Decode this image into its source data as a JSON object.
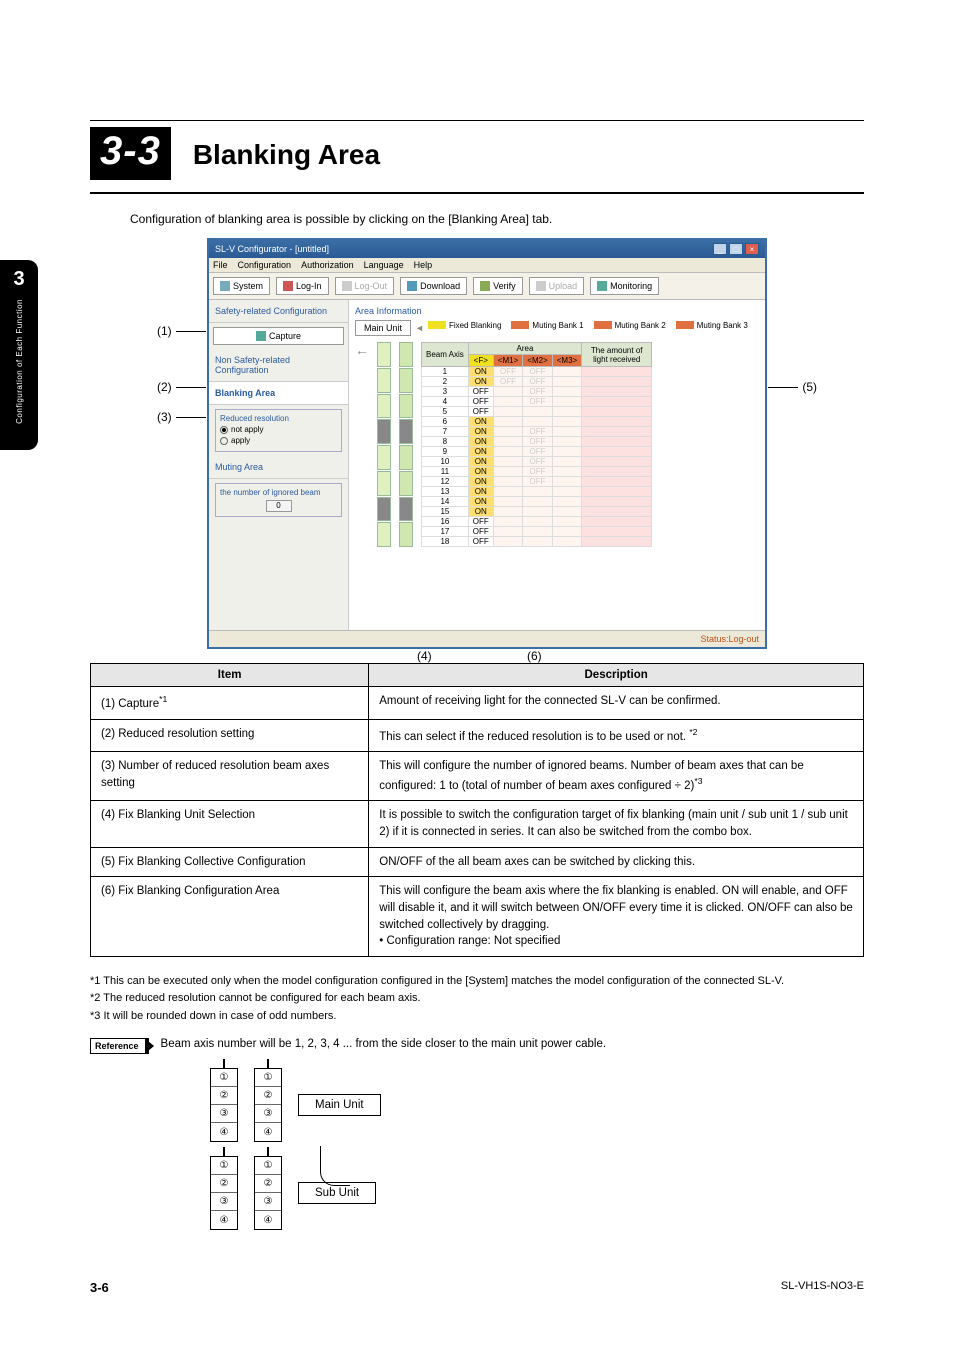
{
  "chapter": {
    "number": "3",
    "label": "Configuration of Each Function"
  },
  "section": {
    "number": "3-3",
    "title": "Blanking Area"
  },
  "intro": "Configuration of blanking area is possible by clicking on the [Blanking Area] tab.",
  "app": {
    "title": "SL-V Configurator - [untitled]",
    "menus": [
      "File",
      "Configuration",
      "Authorization",
      "Language",
      "Help"
    ],
    "toolbar": [
      "System",
      "Log-In",
      "Log-Out",
      "Download",
      "Verify",
      "Upload",
      "Monitoring"
    ],
    "left_panel": {
      "items": [
        "Safety-related Configuration",
        "Non Safety-related Configuration",
        "Blanking Area",
        "Muting Area"
      ],
      "capture_btn": "Capture",
      "reduced_header": "Reduced resolution",
      "radio_not_apply": "not apply",
      "radio_apply": "apply",
      "ignored_header": "the number of ignored beam",
      "num_value": "0"
    },
    "area": {
      "header": "Area Information",
      "main_unit": "Main Unit",
      "legend": [
        {
          "label": "Fixed Blanking",
          "color": "#f0e020"
        },
        {
          "label": "Muting Bank 1",
          "color": "#e07040"
        },
        {
          "label": "Muting Bank 2",
          "color": "#e07040"
        },
        {
          "label": "Muting Bank 3",
          "color": "#e07040"
        }
      ],
      "table_headers": [
        "Beam Axis",
        "<F>",
        "<M1>",
        "<M2>",
        "<M3>",
        "The amount of light received"
      ],
      "rows": [
        {
          "n": 1,
          "f": "ON",
          "m1": "OFF",
          "m2": "OFF"
        },
        {
          "n": 2,
          "f": "ON",
          "m1": "OFF",
          "m2": "OFF"
        },
        {
          "n": 3,
          "f": "OFF",
          "m1": "",
          "m2": "OFF"
        },
        {
          "n": 4,
          "f": "OFF",
          "m1": "",
          "m2": "OFF"
        },
        {
          "n": 5,
          "f": "OFF",
          "m1": "",
          "m2": ""
        },
        {
          "n": 6,
          "f": "ON",
          "m1": "",
          "m2": ""
        },
        {
          "n": 7,
          "f": "ON",
          "m1": "",
          "m2": "OFF"
        },
        {
          "n": 8,
          "f": "ON",
          "m1": "",
          "m2": "OFF"
        },
        {
          "n": 9,
          "f": "ON",
          "m1": "",
          "m2": "OFF"
        },
        {
          "n": 10,
          "f": "ON",
          "m1": "",
          "m2": "OFF"
        },
        {
          "n": 11,
          "f": "ON",
          "m1": "",
          "m2": "OFF"
        },
        {
          "n": 12,
          "f": "ON",
          "m1": "",
          "m2": "OFF"
        },
        {
          "n": 13,
          "f": "ON",
          "m1": "",
          "m2": ""
        },
        {
          "n": 14,
          "f": "ON",
          "m1": "",
          "m2": ""
        },
        {
          "n": 15,
          "f": "ON",
          "m1": "",
          "m2": ""
        },
        {
          "n": 16,
          "f": "OFF",
          "m1": "",
          "m2": ""
        },
        {
          "n": 17,
          "f": "OFF",
          "m1": "",
          "m2": ""
        },
        {
          "n": 18,
          "f": "OFF",
          "m1": "",
          "m2": ""
        }
      ]
    },
    "status": "Status:Log-out"
  },
  "callouts": {
    "c1": "(1)",
    "c2": "(2)",
    "c3": "(3)",
    "c4": "(4)",
    "c5": "(5)",
    "c6": "(6)"
  },
  "table": {
    "head_item": "Item",
    "head_desc": "Description",
    "rows": [
      {
        "item": "(1) Capture*1",
        "sup": "1",
        "desc": "Amount of receiving light for the connected SL-V can be confirmed."
      },
      {
        "item": "(2) Reduced resolution setting",
        "desc": "This can select if the reduced resolution is to be used or not. *2",
        "sup2": "2"
      },
      {
        "item": "(3) Number of reduced resolution beam axes setting",
        "desc": "This will configure the number of ignored beams. Number of beam axes that can be configured: 1 to (total of number of beam axes configured ÷ 2)*3",
        "sup2": "3"
      },
      {
        "item": "(4) Fix Blanking Unit Selection",
        "desc": "It is possible to switch the configuration target of fix blanking (main unit / sub unit 1 / sub unit 2) if it is connected in series. It can also be switched from the combo box."
      },
      {
        "item": "(5) Fix Blanking Collective Configuration",
        "desc": "ON/OFF of the all beam axes can be switched by clicking this."
      },
      {
        "item": "(6) Fix Blanking Configuration Area",
        "desc": "This will configure the beam axis where the fix blanking is enabled. ON will enable, and OFF will disable it, and it will switch between ON/OFF every time it is clicked. ON/OFF can also be switched collectively by dragging.\n• Configuration range: Not specified"
      }
    ]
  },
  "footnotes": {
    "f1": "*1 This can be executed only when the model configuration configured in the [System] matches the model configuration of the connected SL-V.",
    "f2": "*2 The reduced resolution cannot be configured for each beam axis.",
    "f3": "*3 It will be rounded down in case of odd numbers."
  },
  "reference": {
    "tag": "Reference",
    "text": "Beam axis number will be 1, 2, 3, 4 ... from the side closer to the main unit power cable."
  },
  "diagram": {
    "cells": [
      "①",
      "②",
      "③",
      "④"
    ],
    "main_label": "Main Unit",
    "sub_label": "Sub Unit"
  },
  "footer": {
    "page": "3-6",
    "doc": "SL-VH1S-NO3-E"
  }
}
